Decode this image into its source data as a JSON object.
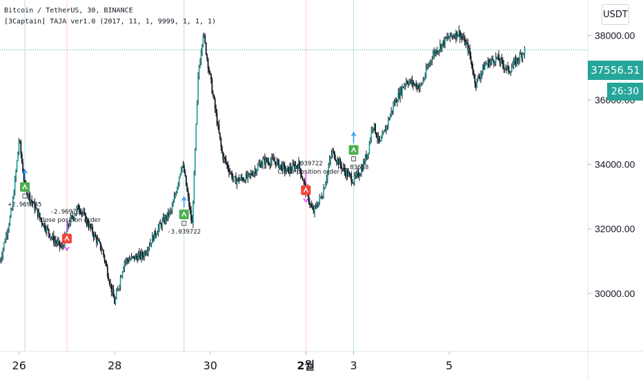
{
  "legend": {
    "line1": "Bitcoin / TetherUS, 30, BINANCE",
    "line2": "[3Captain] TAJA ver1.0 (2017, 11, 1, 9999, 1, 1, 1)"
  },
  "currency_button": "USDT",
  "current_price_label": "37556.51",
  "countdown_label": "26:30",
  "colors": {
    "up": "#26a69a",
    "down": "#ef5350",
    "candle": "#131722",
    "long_marker": "#4caf50",
    "short_marker": "#f44336",
    "price_line": "#26a69a",
    "signal_arrow": "#2196f3",
    "close_arrow": "#e040fb",
    "vline_teal": "#b2dfdb",
    "vline_red": "#ffcdd2"
  },
  "chart_data": {
    "type": "candlestick",
    "series_description": "BTC/USDT 30-minute candles",
    "xlabels": [
      "26",
      "28",
      "30",
      "2월",
      "3",
      "5"
    ],
    "yticks": [
      30000,
      32000,
      34000,
      36000,
      38000
    ],
    "ytick_labels": [
      "30000.00",
      "32000.00",
      "34000.00",
      "36000.00",
      "38000.00"
    ],
    "ylim": [
      28200,
      39100
    ],
    "x_domain_days": [
      25.6,
      37.9
    ],
    "day_ticks": [
      26,
      28,
      30,
      32,
      33,
      35
    ],
    "current_price": 37556.51,
    "path": [
      [
        25.6,
        31000
      ],
      [
        25.85,
        32600
      ],
      [
        25.95,
        34000
      ],
      [
        26.0,
        34800
      ],
      [
        26.12,
        33300
      ],
      [
        26.45,
        32300
      ],
      [
        26.7,
        31700
      ],
      [
        26.9,
        31400
      ],
      [
        27.05,
        32200
      ],
      [
        27.25,
        32700
      ],
      [
        27.5,
        32000
      ],
      [
        27.75,
        31300
      ],
      [
        28.0,
        29700
      ],
      [
        28.2,
        31000
      ],
      [
        28.6,
        31200
      ],
      [
        28.9,
        32000
      ],
      [
        29.2,
        32600
      ],
      [
        29.4,
        34000
      ],
      [
        29.45,
        33800
      ],
      [
        29.62,
        32100
      ],
      [
        29.75,
        36800
      ],
      [
        29.85,
        38100
      ],
      [
        30.05,
        36200
      ],
      [
        30.25,
        34300
      ],
      [
        30.5,
        33500
      ],
      [
        30.8,
        33600
      ],
      [
        31.1,
        34100
      ],
      [
        31.35,
        34100
      ],
      [
        31.6,
        33800
      ],
      [
        31.85,
        34000
      ],
      [
        32.0,
        33200
      ],
      [
        32.15,
        32500
      ],
      [
        32.35,
        33100
      ],
      [
        32.55,
        34400
      ],
      [
        32.8,
        33800
      ],
      [
        33.0,
        33500
      ],
      [
        33.15,
        33800
      ],
      [
        33.3,
        34400
      ],
      [
        33.4,
        35300
      ],
      [
        33.55,
        34600
      ],
      [
        33.85,
        35900
      ],
      [
        34.1,
        36600
      ],
      [
        34.4,
        36400
      ],
      [
        34.65,
        37400
      ],
      [
        34.95,
        37900
      ],
      [
        35.2,
        38100
      ],
      [
        35.4,
        37600
      ],
      [
        35.55,
        36500
      ],
      [
        35.75,
        37100
      ],
      [
        36.0,
        37300
      ],
      [
        36.25,
        36900
      ],
      [
        36.45,
        37300
      ],
      [
        36.6,
        37600
      ]
    ],
    "signals": [
      {
        "type": "long",
        "day": 26.12,
        "price": 33300,
        "label": "+2.969785"
      },
      {
        "type": "short",
        "day": 27.0,
        "price": 31700,
        "label": "-2.969785",
        "note": "Close position order"
      },
      {
        "type": "long",
        "day": 29.45,
        "price": 32450,
        "label": "-3.039722"
      },
      {
        "type": "short",
        "day": 32.0,
        "price": 33200,
        "label": "-3.039722",
        "note": "Close position order"
      },
      {
        "type": "long",
        "day": 33.0,
        "price": 34450,
        "label": "+2.83688"
      }
    ],
    "vlines": [
      {
        "day": 26.12,
        "color": "teal"
      },
      {
        "day": 27.0,
        "color": "red"
      },
      {
        "day": 29.45,
        "color": "teal"
      },
      {
        "day": 32.0,
        "color": "red"
      },
      {
        "day": 33.0,
        "color": "teal"
      }
    ]
  }
}
